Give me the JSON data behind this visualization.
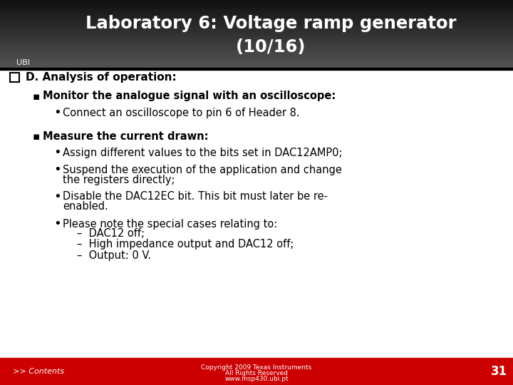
{
  "title_line1": "Laboratory 6: Voltage ramp generator",
  "title_line2": "(10/16)",
  "body_bg": "#ffffff",
  "footer_bg": "#cc0000",
  "footer_page": "31",
  "footer_link": ">> Contents",
  "title_color": "#ffffff",
  "section_heading": "D. Analysis of operation:",
  "sub1_heading": "Monitor the analogue signal with an oscilloscope:",
  "sub1_bullet1": "Connect an oscilloscope to pin 6 of Header 8.",
  "sub2_heading": "Measure the current drawn:",
  "sub2_bullet1": "Assign different values to the bits set in DAC12AMP0;",
  "sub2_bullet2_line1": "Suspend the execution of the application and change",
  "sub2_bullet2_line2": "the registers directly;",
  "sub2_bullet3_line1": "Disable the DAC12EC bit. This bit must later be re-",
  "sub2_bullet3_line2": "enabled.",
  "sub2_bullet4": "Please note the special cases relating to:",
  "sub2_sub1": "DAC12 off;",
  "sub2_sub2": "High impedance output and DAC12 off;",
  "sub2_sub3": "Output: 0 V.",
  "footer_copy1": "Copyright 2009 Texas Instruments",
  "footer_copy2": "All Rights Reserved",
  "footer_copy3": "www.msp430.ubi.pt",
  "ubi_label": "UBI"
}
